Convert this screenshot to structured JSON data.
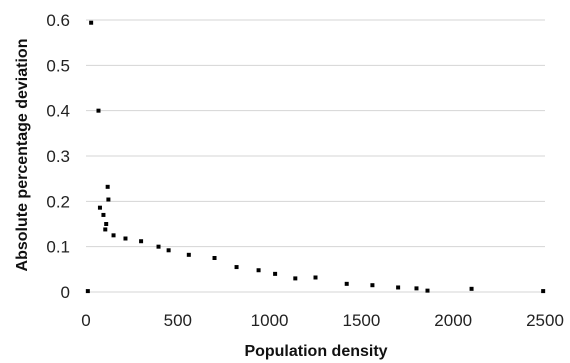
{
  "chart_data": {
    "type": "scatter",
    "title": "",
    "xlabel": "Population density",
    "ylabel": "Absolute percentage deviation",
    "xlim": [
      0,
      2500
    ],
    "ylim": [
      0,
      0.6
    ],
    "x_ticks": [
      "0",
      "500",
      "1000",
      "1500",
      "2000",
      "2500"
    ],
    "y_ticks": [
      "0",
      "0.1",
      "0.2",
      "0.3",
      "0.4",
      "0.5",
      "0.6"
    ],
    "grid": "horizontal",
    "legend": "none",
    "marker_color": "#000000",
    "series": [
      {
        "name": "",
        "points": [
          {
            "x": 28,
            "y": 0.594
          },
          {
            "x": 68,
            "y": 0.4
          },
          {
            "x": 118,
            "y": 0.232
          },
          {
            "x": 122,
            "y": 0.204
          },
          {
            "x": 76,
            "y": 0.186
          },
          {
            "x": 95,
            "y": 0.17
          },
          {
            "x": 110,
            "y": 0.15
          },
          {
            "x": 105,
            "y": 0.138
          },
          {
            "x": 150,
            "y": 0.125
          },
          {
            "x": 215,
            "y": 0.118
          },
          {
            "x": 300,
            "y": 0.112
          },
          {
            "x": 395,
            "y": 0.1
          },
          {
            "x": 450,
            "y": 0.092
          },
          {
            "x": 560,
            "y": 0.082
          },
          {
            "x": 700,
            "y": 0.075
          },
          {
            "x": 820,
            "y": 0.055
          },
          {
            "x": 940,
            "y": 0.048
          },
          {
            "x": 1030,
            "y": 0.04
          },
          {
            "x": 1140,
            "y": 0.03
          },
          {
            "x": 1250,
            "y": 0.032
          },
          {
            "x": 1420,
            "y": 0.018
          },
          {
            "x": 1560,
            "y": 0.015
          },
          {
            "x": 1700,
            "y": 0.01
          },
          {
            "x": 1800,
            "y": 0.008
          },
          {
            "x": 1860,
            "y": 0.003
          },
          {
            "x": 2100,
            "y": 0.007
          },
          {
            "x": 2490,
            "y": 0.002
          },
          {
            "x": 10,
            "y": 0.002
          }
        ]
      }
    ]
  }
}
